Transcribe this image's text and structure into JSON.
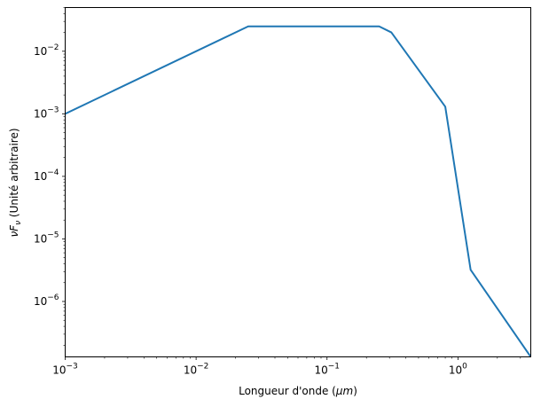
{
  "chart_data": {
    "type": "line",
    "xscale": "log",
    "yscale": "log",
    "xlabel_main": "Longueur d'onde (",
    "xlabel_sym": "μm",
    "xlabel_end": ")",
    "ylabel_sym1": "ν",
    "ylabel_sym2": "F",
    "ylabel_sub": "ν",
    "ylabel_rest": " (Unité arbitraire)",
    "xlim": [
      0.001,
      3.6
    ],
    "ylim": [
      1.3e-07,
      0.05
    ],
    "x_ticks": [
      {
        "value": 0.001,
        "base": "10",
        "exp": "−3"
      },
      {
        "value": 0.01,
        "base": "10",
        "exp": "−2"
      },
      {
        "value": 0.1,
        "base": "10",
        "exp": "−1"
      },
      {
        "value": 1,
        "base": "10",
        "exp": "0"
      }
    ],
    "y_ticks": [
      {
        "value": 1e-06,
        "base": "10",
        "exp": "−6"
      },
      {
        "value": 1e-05,
        "base": "10",
        "exp": "−5"
      },
      {
        "value": 0.0001,
        "base": "10",
        "exp": "−4"
      },
      {
        "value": 0.001,
        "base": "10",
        "exp": "−3"
      },
      {
        "value": 0.01,
        "base": "10",
        "exp": "−2"
      }
    ],
    "series": [
      {
        "color": "#1f77b4",
        "x": [
          0.001,
          0.025,
          0.25,
          0.31,
          0.8,
          1.25,
          3.6
        ],
        "y": [
          0.001,
          0.025,
          0.025,
          0.02,
          0.0013,
          3.2e-06,
          1.3e-07
        ]
      }
    ],
    "grid": false
  }
}
